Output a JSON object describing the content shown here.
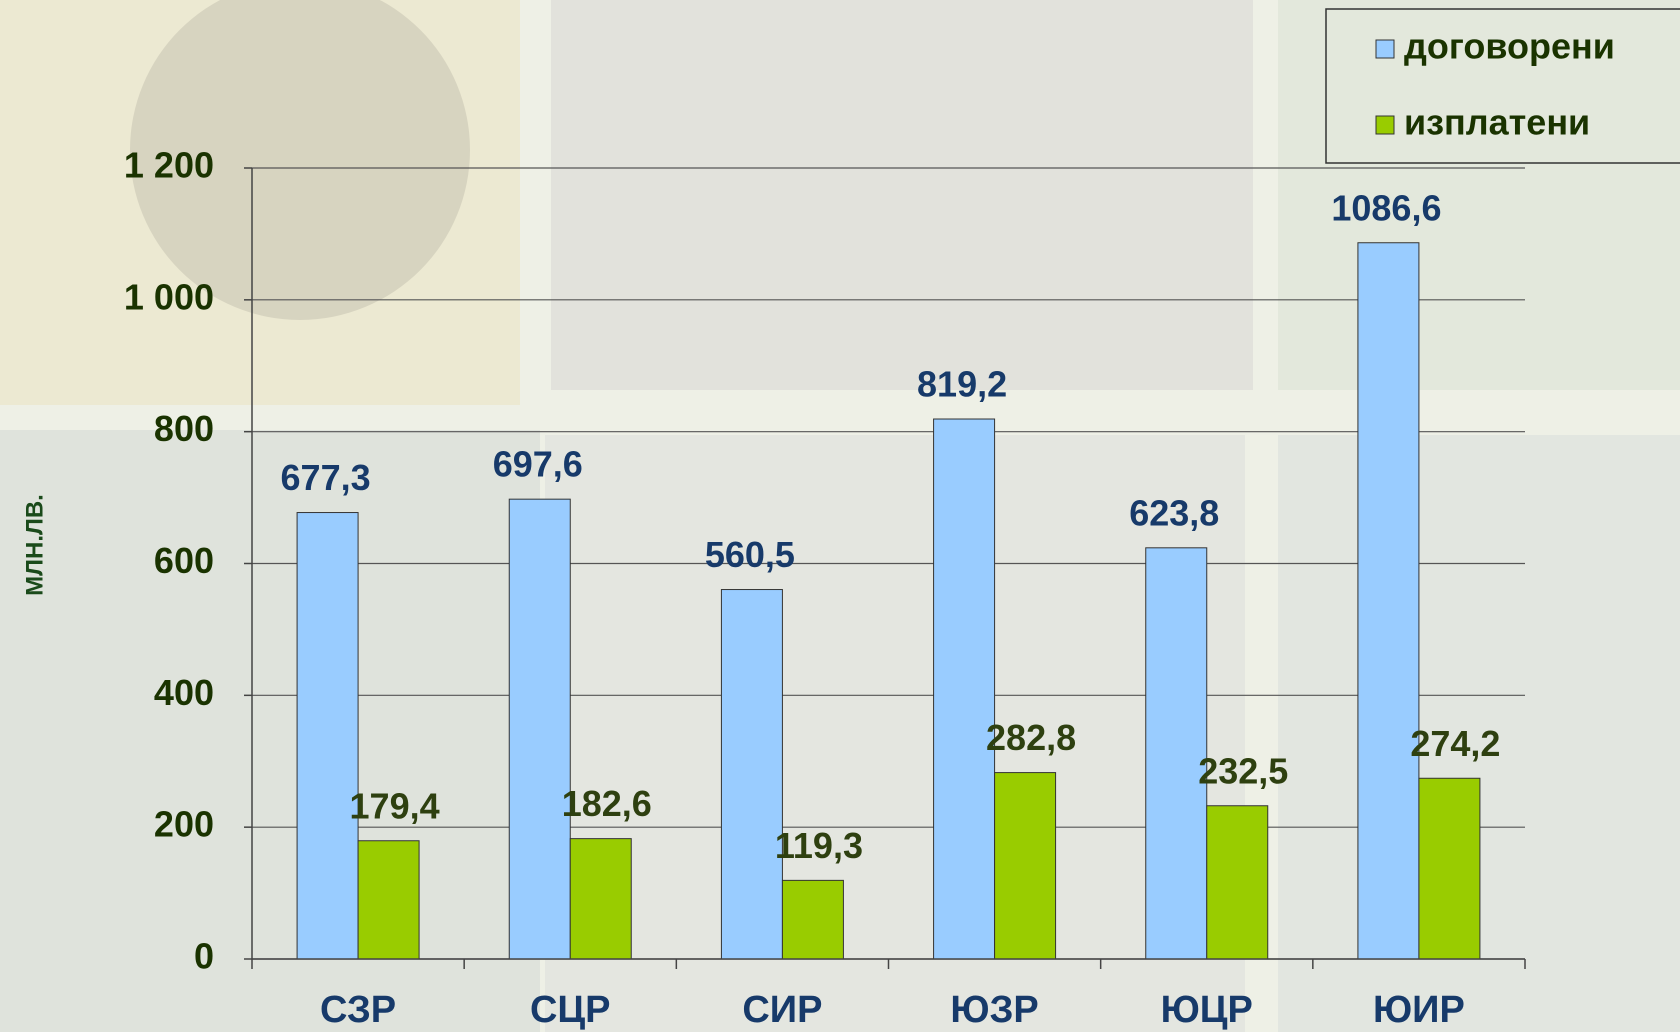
{
  "chart_data": {
    "type": "bar",
    "y_label": "МЛН.ЛВ.",
    "categories": [
      "СЗР",
      "СЦР",
      "СИР",
      "ЮЗР",
      "ЮЦР",
      "ЮИР"
    ],
    "series": [
      {
        "name": "договорени",
        "color": "#99ccff",
        "values": [
          677.3,
          697.6,
          560.5,
          819.2,
          623.8,
          1086.6
        ],
        "value_labels": [
          "677,3",
          "697,6",
          "560,5",
          "819,2",
          "623,8",
          "1086,6"
        ]
      },
      {
        "name": "изплатени",
        "color": "#99cc00",
        "values": [
          179.4,
          182.6,
          119.3,
          282.8,
          232.5,
          274.2
        ],
        "value_labels": [
          "179,4",
          "182,6",
          "119,3",
          "282,8",
          "232,5",
          "274,2"
        ]
      }
    ],
    "ylim": [
      0,
      1200
    ],
    "yticks": [
      0,
      200,
      400,
      600,
      800,
      {
        "value": 1000,
        "label": "1 000"
      },
      {
        "value": 1200,
        "label": "1 200"
      }
    ],
    "grid": true,
    "legend": "top-right"
  }
}
